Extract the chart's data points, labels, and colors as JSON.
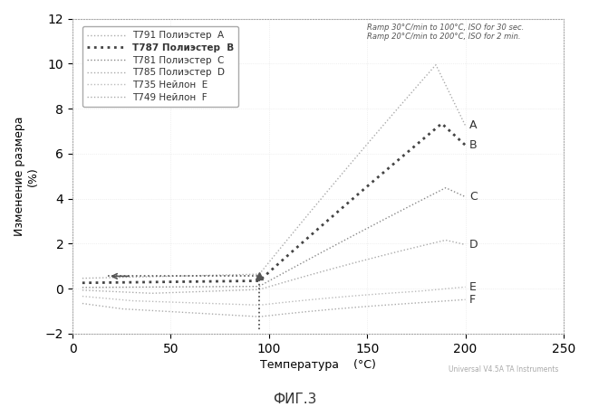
{
  "title_annotation": "Ramp 30°C/min to 100°C, ISO for 30 sec.\nRamp 20°C/min to 200°C, ISO for 2 min.",
  "xlabel": "Температура    (°C)",
  "ylabel": "Изменение размера",
  "ylabel2": "(%)",
  "figure_label": "ФИГ.3",
  "watermark": "Universal V4.5A TA Instruments",
  "xlim": [
    0,
    250
  ],
  "ylim": [
    -2,
    12
  ],
  "xticks": [
    0,
    50,
    100,
    150,
    200,
    250
  ],
  "yticks": [
    -2,
    0,
    2,
    4,
    6,
    8,
    10,
    12
  ],
  "bg_color": "#ffffff",
  "legend_entries": [
    {
      "code": "T791",
      "material": "Полиэстер",
      "label": "A",
      "lw": 1.0,
      "ls": "dotted",
      "color": "#aaaaaa",
      "bold": false
    },
    {
      "code": "T787",
      "material": "Полиэстер",
      "label": "B",
      "lw": 2.0,
      "ls": "dotted",
      "color": "#444444",
      "bold": true
    },
    {
      "code": "T781",
      "material": "Полиэстер",
      "label": "C",
      "lw": 1.0,
      "ls": "dotted",
      "color": "#888888",
      "bold": false
    },
    {
      "code": "T785",
      "material": "Полиэстер",
      "label": "D",
      "lw": 1.0,
      "ls": "dotted",
      "color": "#aaaaaa",
      "bold": false
    },
    {
      "code": "T735",
      "material": "Нейлон",
      "label": "E",
      "lw": 1.0,
      "ls": "dotted",
      "color": "#bbbbbb",
      "bold": false
    },
    {
      "code": "T749",
      "material": "Нейлон",
      "label": "F",
      "lw": 1.0,
      "ls": "dotted",
      "color": "#aaaaaa",
      "bold": false
    }
  ]
}
